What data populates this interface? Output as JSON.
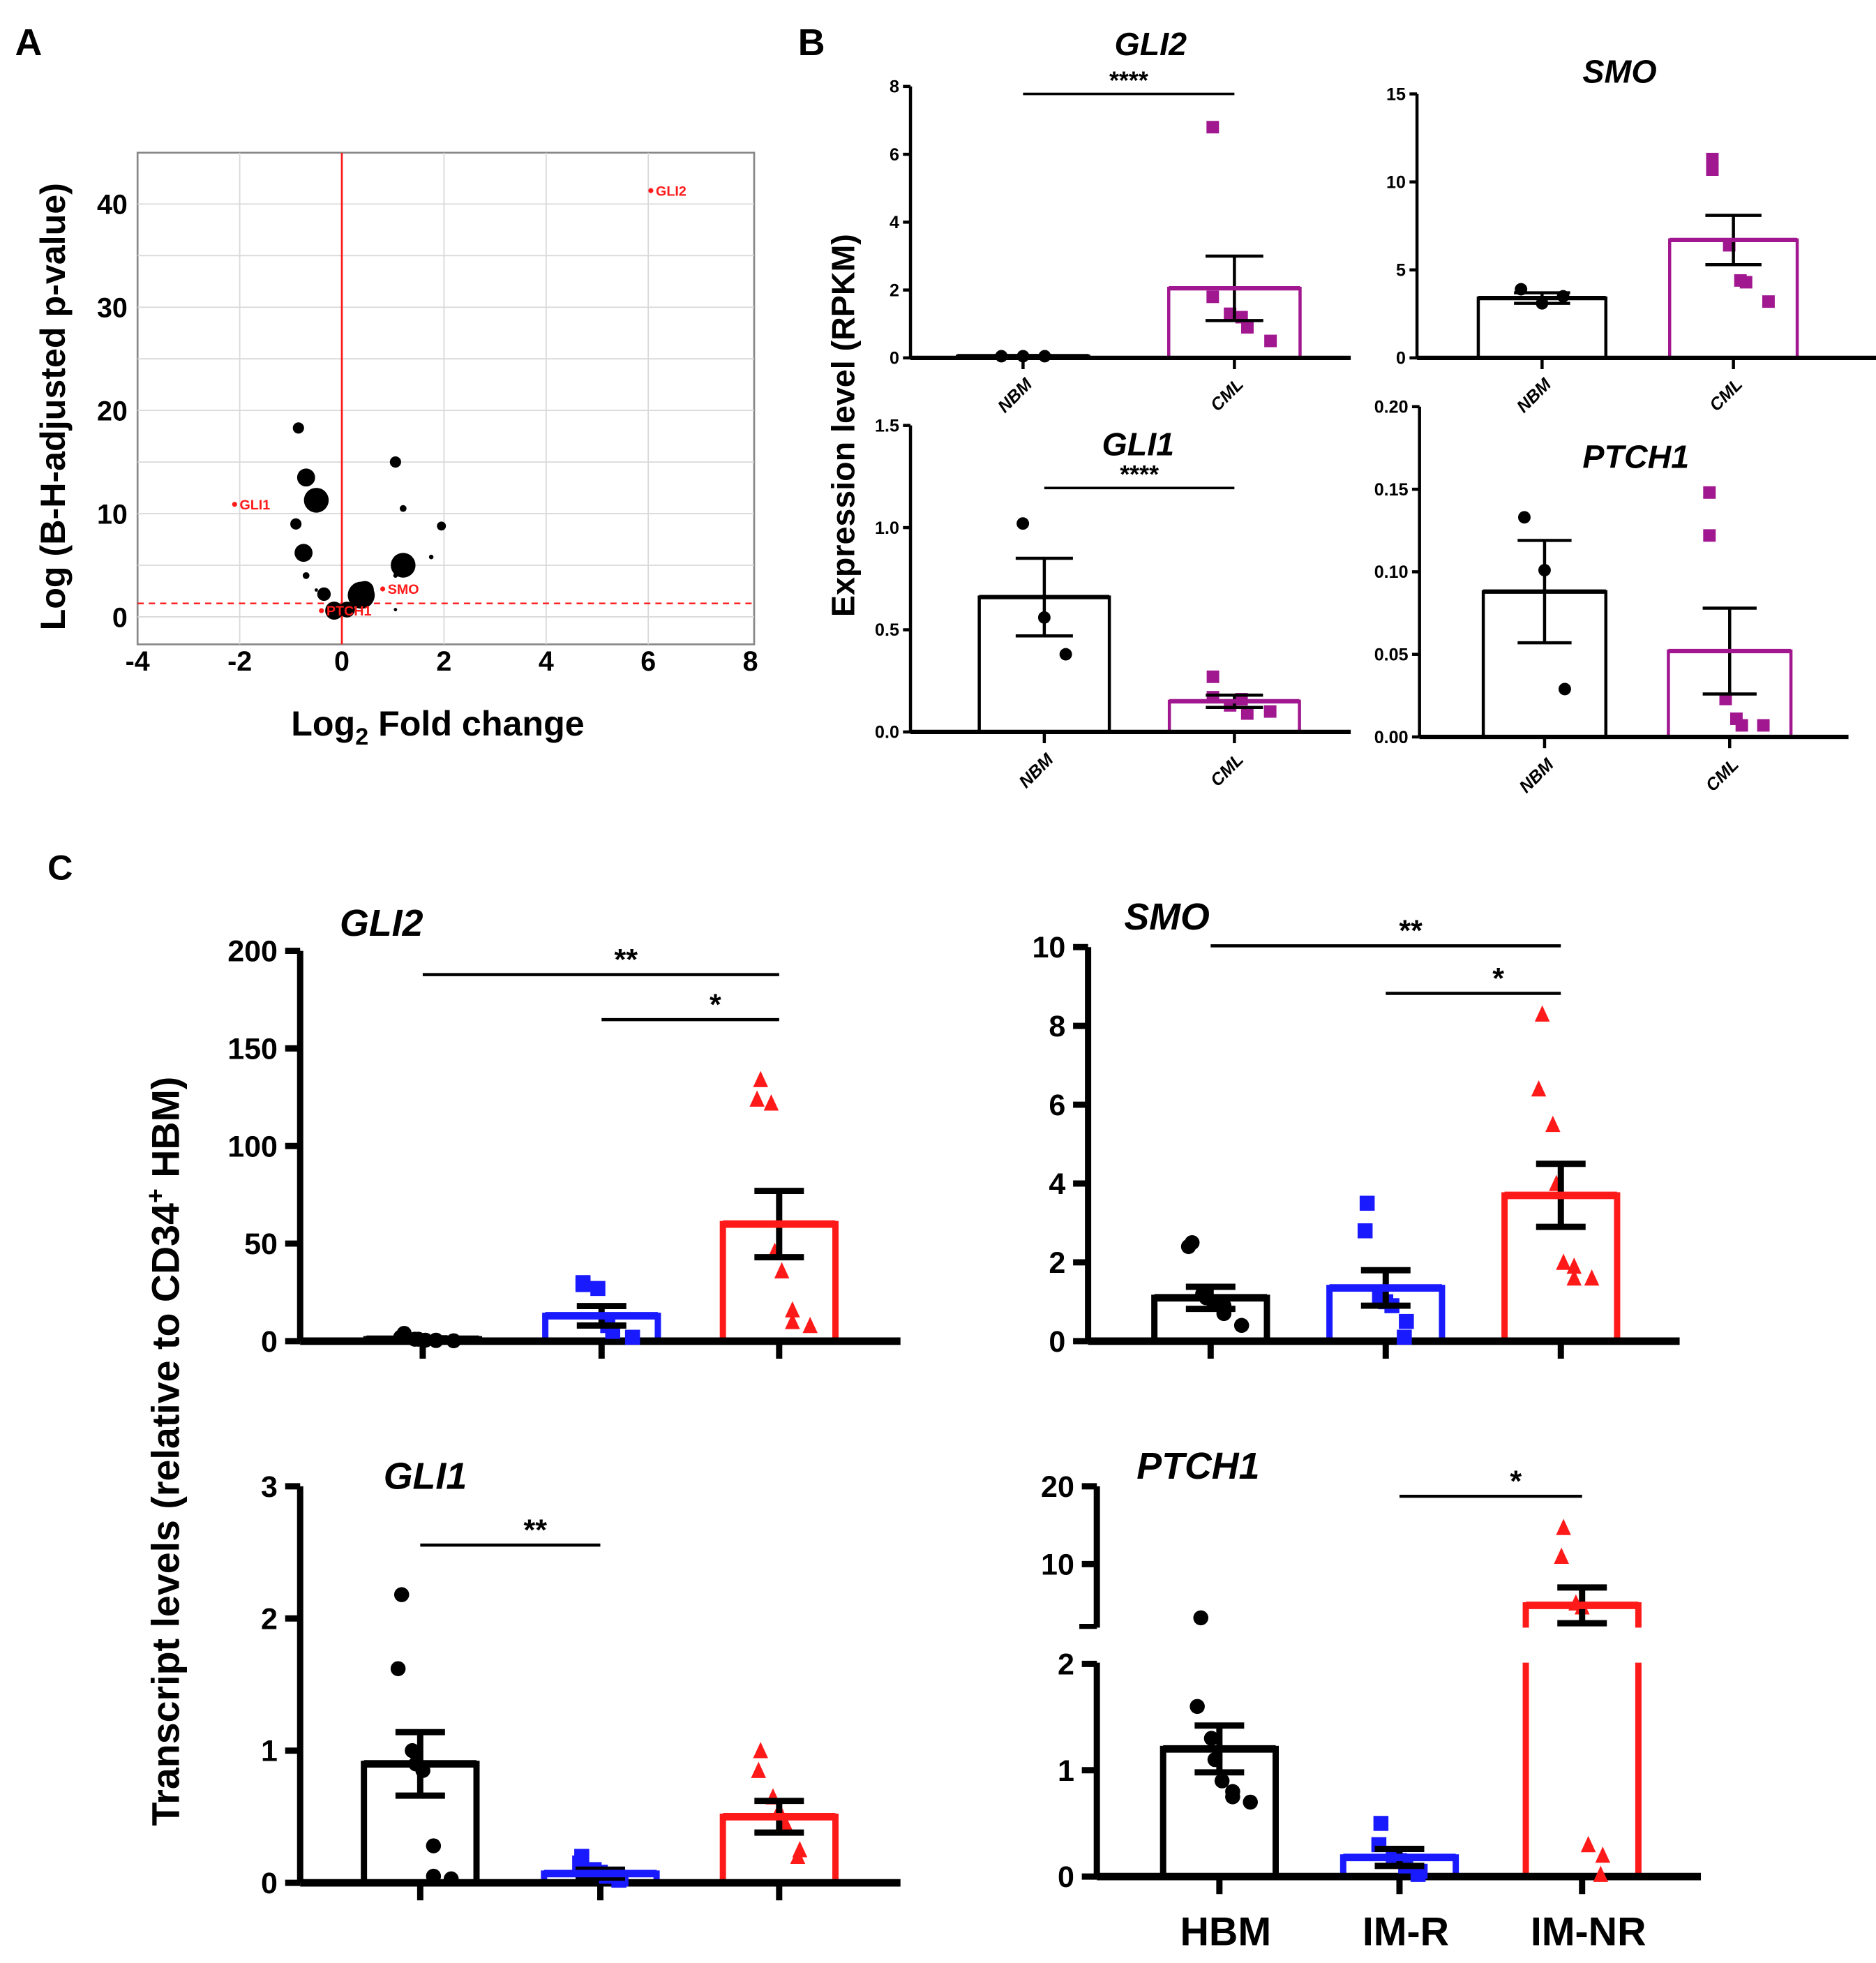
{
  "panels": {
    "a": "A",
    "b": "B",
    "c": "C"
  },
  "colors": {
    "black": "#000000",
    "purple": "#a0178f",
    "blue": "#1a1aff",
    "red": "#ff1a1a",
    "grid": "#d9d9d9"
  },
  "labels": {
    "a_xlabel_main": "Log",
    "a_xlabel_sub": "2",
    "a_xlabel_rest": " Fold change",
    "a_ylabel": "Log (B-H-adjusted p-value)",
    "b_ylabel": "Expression level (RPKM)",
    "c_ylabel_main": "Transcript levels (relative to CD34",
    "c_ylabel_sup": "+",
    "c_ylabel_rest": " HBM)"
  },
  "chart_data": [
    {
      "type": "scatter",
      "id": "A",
      "title": "",
      "xlabel": "Log2 Fold change",
      "ylabel": "Log (B-H-adjusted p-value)",
      "xlim": [
        -4,
        8
      ],
      "ylim": [
        -2,
        45
      ],
      "xticks": [
        -4,
        -2,
        0,
        2,
        4,
        6,
        8
      ],
      "yticks": [
        0,
        10,
        20,
        30,
        40
      ],
      "grid": true,
      "vline": 0,
      "threshold": 1.3,
      "points": [
        {
          "x": -0.85,
          "y": 18.3,
          "size": 5
        },
        {
          "x": -0.7,
          "y": 13.5,
          "size": 8
        },
        {
          "x": -0.5,
          "y": 11.3,
          "size": 11
        },
        {
          "x": -0.9,
          "y": 9.0,
          "size": 5
        },
        {
          "x": -0.75,
          "y": 6.2,
          "size": 8
        },
        {
          "x": -0.7,
          "y": 4.0,
          "size": 3
        },
        {
          "x": -0.5,
          "y": 2.6,
          "size": 1.5
        },
        {
          "x": -0.35,
          "y": 2.2,
          "size": 6
        },
        {
          "x": -0.15,
          "y": 0.6,
          "size": 8
        },
        {
          "x": 0.1,
          "y": 0.7,
          "size": 7
        },
        {
          "x": 0.38,
          "y": 2.1,
          "size": 12
        },
        {
          "x": 0.45,
          "y": 2.6,
          "size": 8
        },
        {
          "x": 1.05,
          "y": 15.0,
          "size": 5
        },
        {
          "x": 1.2,
          "y": 10.5,
          "size": 3
        },
        {
          "x": 1.95,
          "y": 8.8,
          "size": 4
        },
        {
          "x": 1.75,
          "y": 5.8,
          "size": 2
        },
        {
          "x": 1.2,
          "y": 5.0,
          "size": 11
        },
        {
          "x": 1.05,
          "y": 4.0,
          "size": 2
        },
        {
          "x": 1.05,
          "y": 0.7,
          "size": 1.5
        }
      ],
      "highlighted": [
        {
          "label": "GLI2",
          "x": 6.05,
          "y": 41.3
        },
        {
          "label": "GLI1",
          "x": -2.1,
          "y": 10.9
        },
        {
          "label": "SMO",
          "x": 0.8,
          "y": 2.7
        },
        {
          "label": "PTCH1",
          "x": -0.4,
          "y": 0.6
        }
      ]
    },
    {
      "type": "bar",
      "id": "B-GLI2",
      "title": "GLI2",
      "ylabel": "Expression level (RPKM)",
      "categories": [
        "NBM",
        "CML"
      ],
      "ylim": [
        0,
        8
      ],
      "yticks": [
        "0",
        "2",
        "4",
        "6",
        "8"
      ],
      "groups": [
        {
          "name": "NBM",
          "mean": 0.05,
          "sem": 0.02,
          "color": "#000000",
          "marker": "circle",
          "points": [
            0.05,
            0.05,
            0.05
          ]
        },
        {
          "name": "CML",
          "mean": 2.05,
          "sem": 0.95,
          "color": "#a0178f",
          "marker": "square",
          "points": [
            6.8,
            1.8,
            1.3,
            1.2,
            0.9,
            0.5
          ]
        }
      ],
      "significance": [
        {
          "from": 0,
          "to": 1,
          "label": "****"
        }
      ]
    },
    {
      "type": "bar",
      "id": "B-SMO",
      "title": "SMO",
      "categories": [
        "NBM",
        "CML"
      ],
      "ylim": [
        0,
        15
      ],
      "yticks": [
        "0",
        "5",
        "10",
        "15"
      ],
      "groups": [
        {
          "name": "NBM",
          "mean": 3.4,
          "sem": 0.3,
          "color": "#000000",
          "marker": "circle",
          "points": [
            3.9,
            3.1,
            3.5
          ]
        },
        {
          "name": "CML",
          "mean": 6.7,
          "sem": 1.4,
          "color": "#a0178f",
          "marker": "square",
          "points": [
            11.3,
            10.7,
            6.4,
            4.4,
            4.3,
            3.2
          ]
        }
      ],
      "significance": []
    },
    {
      "type": "bar",
      "id": "B-GLI1",
      "title": "GLI1",
      "categories": [
        "NBM",
        "CML"
      ],
      "ylim": [
        0,
        1.5
      ],
      "yticks": [
        "0.0",
        "0.5",
        "1.0",
        "1.5"
      ],
      "groups": [
        {
          "name": "NBM",
          "mean": 0.66,
          "sem": 0.19,
          "color": "#000000",
          "marker": "circle",
          "points": [
            1.02,
            0.56,
            0.38
          ]
        },
        {
          "name": "CML",
          "mean": 0.15,
          "sem": 0.03,
          "color": "#a0178f",
          "marker": "square",
          "points": [
            0.27,
            0.17,
            0.13,
            0.16,
            0.09,
            0.1
          ]
        }
      ],
      "significance": [
        {
          "from": 0,
          "to": 1,
          "label": "****"
        }
      ]
    },
    {
      "type": "bar",
      "id": "B-PTCH1",
      "title": "PTCH1",
      "categories": [
        "NBM",
        "CML"
      ],
      "ylim": [
        0,
        0.2
      ],
      "yticks": [
        "0.00",
        "0.05",
        "0.10",
        "0.15",
        "0.20"
      ],
      "groups": [
        {
          "name": "NBM",
          "mean": 0.088,
          "sem": 0.031,
          "color": "#000000",
          "marker": "circle",
          "points": [
            0.133,
            0.101,
            0.029
          ]
        },
        {
          "name": "CML",
          "mean": 0.052,
          "sem": 0.026,
          "color": "#a0178f",
          "marker": "square",
          "points": [
            0.148,
            0.122,
            0.023,
            0.011,
            0.007,
            0.007
          ]
        }
      ],
      "significance": []
    },
    {
      "type": "bar",
      "id": "C-GLI2",
      "title": "GLI2",
      "ylabel": "Transcript levels (relative to CD34+ HBM)",
      "categories": [
        "HBM",
        "IM-R",
        "IM-NR"
      ],
      "ylim": [
        0,
        200
      ],
      "yticks": [
        "0",
        "50",
        "100",
        "150",
        "200"
      ],
      "groups": [
        {
          "name": "HBM",
          "mean": 1,
          "sem": 0.5,
          "color": "#000000",
          "marker": "circle",
          "points": [
            4,
            2,
            1,
            1,
            0.5,
            0.5,
            0.3,
            0.2
          ]
        },
        {
          "name": "IM-R",
          "mean": 13,
          "sem": 5,
          "color": "#1a1aff",
          "marker": "square",
          "points": [
            30,
            29,
            27,
            8,
            5,
            2
          ]
        },
        {
          "name": "IM-NR",
          "mean": 60,
          "sem": 17,
          "color": "#ff1a1a",
          "marker": "triangle",
          "points": [
            134,
            124,
            122,
            46,
            36,
            16,
            10,
            8
          ]
        }
      ],
      "significance": [
        {
          "from": 0,
          "to": 2,
          "label": "**"
        },
        {
          "from": 1,
          "to": 2,
          "label": "*"
        }
      ]
    },
    {
      "type": "bar",
      "id": "C-SMO",
      "title": "SMO",
      "categories": [
        "HBM",
        "IM-R",
        "IM-NR"
      ],
      "ylim": [
        0,
        10
      ],
      "yticks": [
        "0",
        "2",
        "4",
        "6",
        "8",
        "10"
      ],
      "groups": [
        {
          "name": "HBM",
          "mean": 1.1,
          "sem": 0.28,
          "color": "#000000",
          "marker": "circle",
          "points": [
            2.5,
            2.4,
            1.2,
            1.1,
            1.0,
            0.9,
            0.7,
            0.4
          ]
        },
        {
          "name": "IM-R",
          "mean": 1.35,
          "sem": 0.45,
          "color": "#1a1aff",
          "marker": "square",
          "points": [
            3.5,
            2.8,
            1.1,
            1.0,
            0.9,
            0.5,
            0.1
          ]
        },
        {
          "name": "IM-NR",
          "mean": 3.7,
          "sem": 0.8,
          "color": "#ff1a1a",
          "marker": "triangle",
          "points": [
            8.3,
            6.4,
            5.5,
            4.0,
            2.0,
            1.9,
            1.6,
            1.6
          ]
        }
      ],
      "significance": [
        {
          "from": 0,
          "to": 2,
          "label": "**"
        },
        {
          "from": 1,
          "to": 2,
          "label": "*"
        }
      ]
    },
    {
      "type": "bar",
      "id": "C-GLI1",
      "title": "GLI1",
      "categories": [
        "HBM",
        "IM-R",
        "IM-NR"
      ],
      "ylim": [
        0,
        3
      ],
      "yticks": [
        "0",
        "1",
        "2",
        "3"
      ],
      "groups": [
        {
          "name": "HBM",
          "mean": 0.9,
          "sem": 0.24,
          "color": "#000000",
          "marker": "circle",
          "points": [
            2.18,
            1.62,
            1.0,
            0.9,
            0.85,
            0.28,
            0.05,
            0.03
          ]
        },
        {
          "name": "IM-R",
          "mean": 0.07,
          "sem": 0.03,
          "color": "#1a1aff",
          "marker": "square",
          "points": [
            0.2,
            0.15,
            0.1,
            0.08,
            0.05,
            0.03,
            0.02
          ]
        },
        {
          "name": "IM-NR",
          "mean": 0.5,
          "sem": 0.12,
          "color": "#ff1a1a",
          "marker": "triangle",
          "points": [
            1.0,
            0.85,
            0.65,
            0.55,
            0.45,
            0.25,
            0.2
          ]
        }
      ],
      "significance": [
        {
          "from": 0,
          "to": 1,
          "label": "**"
        }
      ]
    },
    {
      "type": "bar",
      "id": "C-PTCH1",
      "title": "PTCH1",
      "categories": [
        "HBM",
        "IM-R",
        "IM-NR"
      ],
      "ylim": [
        0,
        20
      ],
      "axis_break": [
        2,
        2
      ],
      "yticks": [
        "0",
        "1",
        "2",
        "10",
        "20"
      ],
      "show_category_labels": true,
      "groups": [
        {
          "name": "HBM",
          "mean": 1.2,
          "sem": 0.22,
          "color": "#000000",
          "marker": "circle",
          "points": [
            3.1,
            1.6,
            1.3,
            1.1,
            0.9,
            0.8,
            0.75,
            0.7
          ]
        },
        {
          "name": "IM-R",
          "mean": 0.18,
          "sem": 0.08,
          "color": "#1a1aff",
          "marker": "square",
          "points": [
            0.5,
            0.3,
            0.2,
            0.15,
            0.1,
            0.05,
            0.02
          ]
        },
        {
          "name": "IM-NR",
          "mean": 4.7,
          "sem": 2.3,
          "color": "#ff1a1a",
          "marker": "triangle",
          "points": [
            14.7,
            11,
            5,
            4.5,
            0.3,
            0.2,
            0.02
          ]
        }
      ],
      "significance": [
        {
          "from": 1,
          "to": 2,
          "label": "*"
        }
      ]
    }
  ]
}
